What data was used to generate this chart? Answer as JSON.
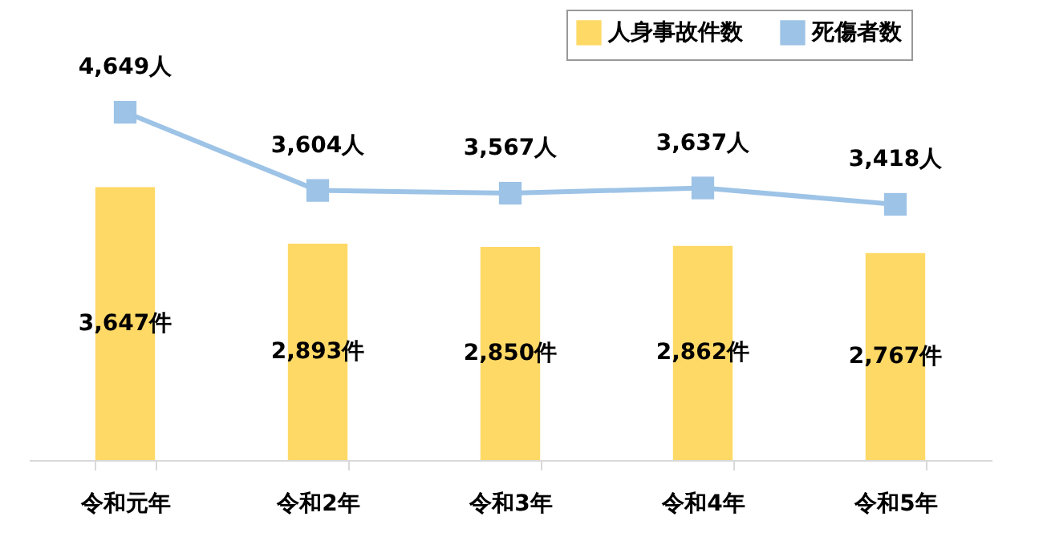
{
  "chart_data": {
    "type": "bar",
    "categories": [
      "令和元年",
      "令和2年",
      "令和3年",
      "令和4年",
      "令和5年"
    ],
    "series": [
      {
        "name": "人身事故件数",
        "color": "#ffd966",
        "values": [
          3647,
          2893,
          2850,
          2862,
          2767
        ],
        "value_labels": [
          "3,647件",
          "2,893件",
          "2,850件",
          "2,862件",
          "2,767件"
        ]
      },
      {
        "name": "死傷者数",
        "type": "line",
        "color": "#9dc3e6",
        "values": [
          4649,
          3604,
          3567,
          3637,
          3418
        ],
        "value_labels": [
          "4,649人",
          "3,604人",
          "3,567人",
          "3,637人",
          "3,418人"
        ]
      }
    ],
    "legend": "top right",
    "marker": "square",
    "line_style": "solid",
    "grid": false
  }
}
